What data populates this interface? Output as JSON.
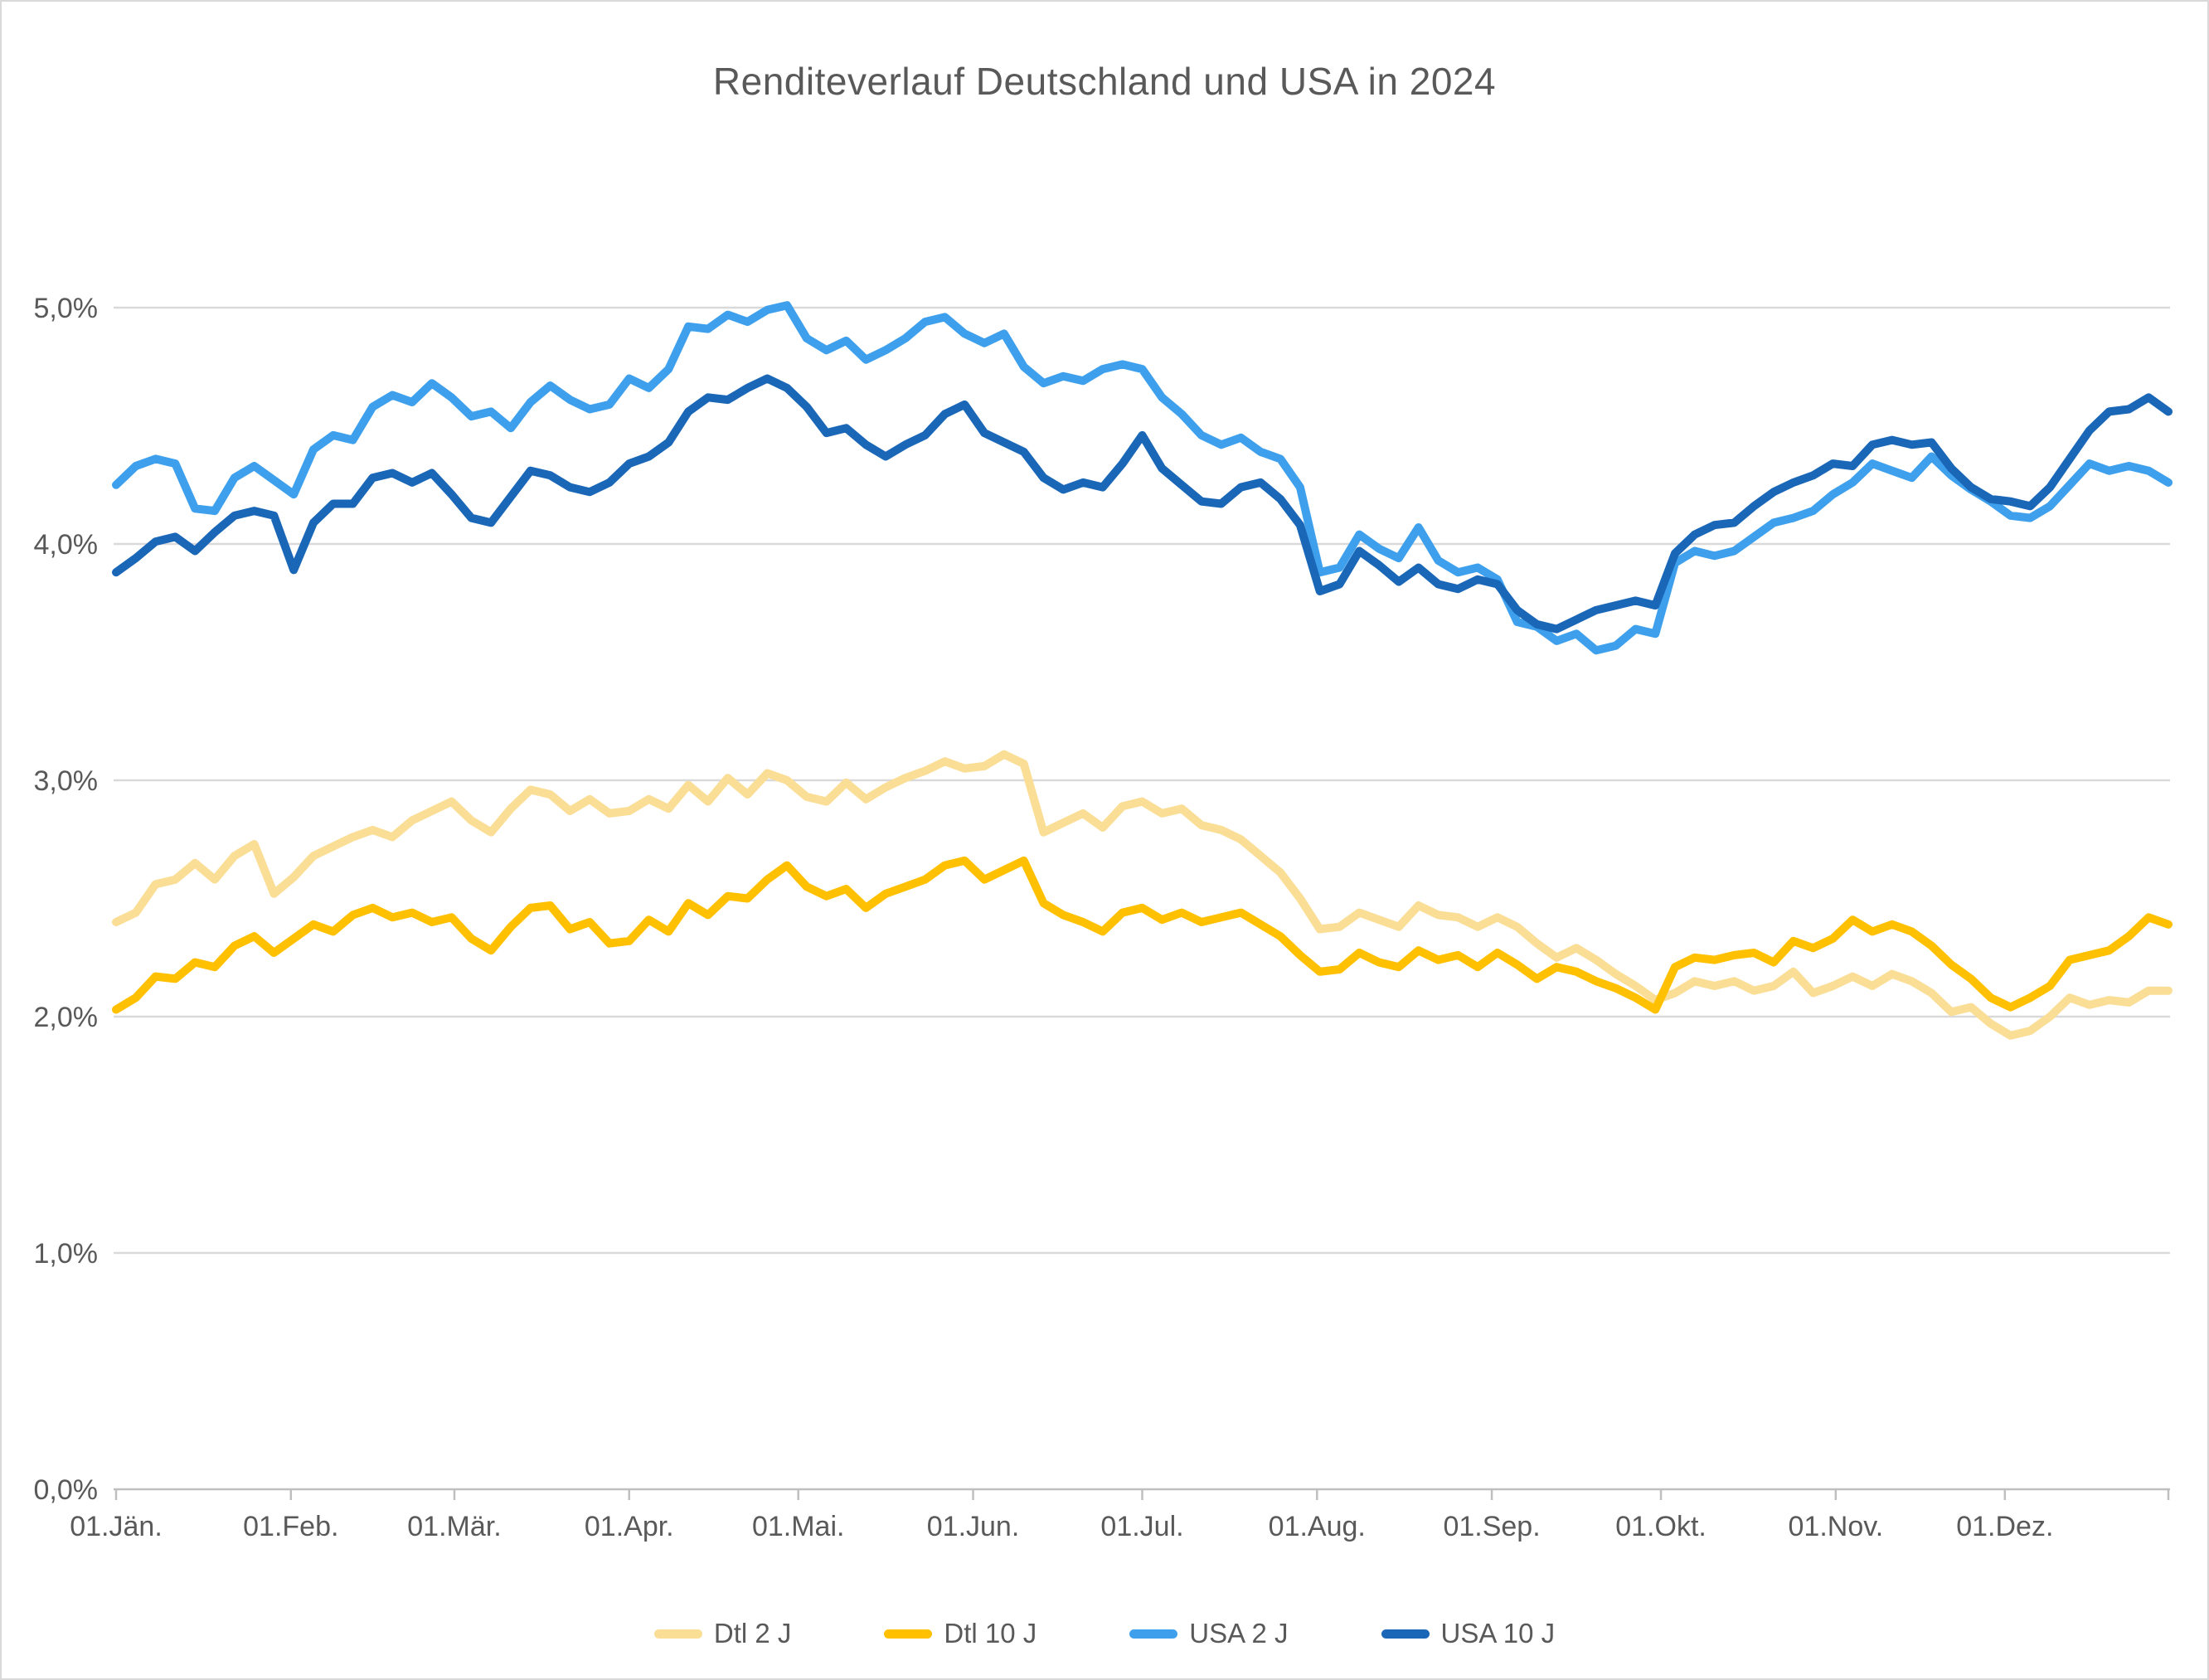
{
  "page": {
    "background": "#FFFFFF",
    "border_color": "#D9D9D9"
  },
  "chart_data": {
    "type": "line",
    "title": "Renditeverlauf Deutschland und USA in 2024",
    "title_color": "#595959",
    "label_color": "#595959",
    "gridline_color": "#D9D9D9",
    "axis_color": "#BFBFBF",
    "grid": true,
    "legend_position": "bottom",
    "ylim": [
      0,
      5.0
    ],
    "y_tick_labels": [
      "0,0%",
      "1,0%",
      "2,0%",
      "3,0%",
      "4,0%",
      "5,0%"
    ],
    "x_tick_labels": [
      "01.Jän.",
      "01.Feb.",
      "01.Mär.",
      "01.Apr.",
      "01.Mai.",
      "01.Jun.",
      "01.Jul.",
      "01.Aug.",
      "01.Sep.",
      "01.Okt.",
      "01.Nov.",
      "01.Dez."
    ],
    "x_unit": "Tage des Jahres 2024, 105 Stützpunkte von 01.Jän. bis 31.Dez.",
    "series": [
      {
        "name": "Dtl 2 J",
        "color": "#FADE96",
        "values": [
          2.4,
          2.44,
          2.56,
          2.58,
          2.65,
          2.58,
          2.68,
          2.73,
          2.52,
          2.59,
          2.68,
          2.72,
          2.76,
          2.79,
          2.76,
          2.83,
          2.87,
          2.91,
          2.83,
          2.78,
          2.88,
          2.96,
          2.94,
          2.87,
          2.92,
          2.86,
          2.87,
          2.92,
          2.88,
          2.98,
          2.91,
          3.01,
          2.94,
          3.03,
          3.0,
          2.93,
          2.91,
          2.99,
          2.92,
          2.97,
          3.01,
          3.04,
          3.08,
          3.05,
          3.06,
          3.11,
          3.07,
          2.78,
          2.82,
          2.86,
          2.8,
          2.89,
          2.91,
          2.86,
          2.88,
          2.81,
          2.79,
          2.75,
          2.68,
          2.61,
          2.5,
          2.37,
          2.38,
          2.44,
          2.41,
          2.38,
          2.47,
          2.43,
          2.42,
          2.38,
          2.42,
          2.38,
          2.31,
          2.25,
          2.29,
          2.24,
          2.18,
          2.13,
          2.07,
          2.1,
          2.15,
          2.13,
          2.15,
          2.11,
          2.13,
          2.19,
          2.1,
          2.13,
          2.17,
          2.13,
          2.18,
          2.15,
          2.1,
          2.02,
          2.04,
          1.97,
          1.92,
          1.94,
          2.0,
          2.08,
          2.05,
          2.07,
          2.06,
          2.11,
          2.11
        ]
      },
      {
        "name": "Dtl 10 J",
        "color": "#FFC000",
        "values": [
          2.03,
          2.08,
          2.17,
          2.16,
          2.23,
          2.21,
          2.3,
          2.34,
          2.27,
          2.33,
          2.39,
          2.36,
          2.43,
          2.46,
          2.42,
          2.44,
          2.4,
          2.42,
          2.33,
          2.28,
          2.38,
          2.46,
          2.47,
          2.37,
          2.4,
          2.31,
          2.32,
          2.41,
          2.36,
          2.48,
          2.43,
          2.51,
          2.5,
          2.58,
          2.64,
          2.55,
          2.51,
          2.54,
          2.46,
          2.52,
          2.55,
          2.58,
          2.64,
          2.66,
          2.58,
          2.62,
          2.66,
          2.48,
          2.43,
          2.4,
          2.36,
          2.44,
          2.46,
          2.41,
          2.44,
          2.4,
          2.42,
          2.44,
          2.39,
          2.34,
          2.26,
          2.19,
          2.2,
          2.27,
          2.23,
          2.21,
          2.28,
          2.24,
          2.26,
          2.21,
          2.27,
          2.22,
          2.16,
          2.21,
          2.19,
          2.15,
          2.12,
          2.08,
          2.03,
          2.21,
          2.25,
          2.24,
          2.26,
          2.27,
          2.23,
          2.32,
          2.29,
          2.33,
          2.41,
          2.36,
          2.39,
          2.36,
          2.3,
          2.22,
          2.16,
          2.08,
          2.04,
          2.08,
          2.13,
          2.24,
          2.26,
          2.28,
          2.34,
          2.42,
          2.39
        ]
      },
      {
        "name": "USA 2 J",
        "color": "#3EA0ED",
        "values": [
          4.25,
          4.33,
          4.36,
          4.34,
          4.15,
          4.14,
          4.28,
          4.33,
          4.27,
          4.21,
          4.4,
          4.46,
          4.44,
          4.58,
          4.63,
          4.6,
          4.68,
          4.62,
          4.54,
          4.56,
          4.49,
          4.6,
          4.67,
          4.61,
          4.57,
          4.59,
          4.7,
          4.66,
          4.74,
          4.92,
          4.91,
          4.97,
          4.94,
          4.99,
          5.01,
          4.87,
          4.82,
          4.86,
          4.78,
          4.82,
          4.87,
          4.94,
          4.96,
          4.89,
          4.85,
          4.89,
          4.75,
          4.68,
          4.71,
          4.69,
          4.74,
          4.76,
          4.74,
          4.62,
          4.55,
          4.46,
          4.42,
          4.45,
          4.39,
          4.36,
          4.24,
          3.88,
          3.9,
          4.04,
          3.98,
          3.94,
          4.07,
          3.93,
          3.88,
          3.9,
          3.85,
          3.67,
          3.65,
          3.59,
          3.62,
          3.55,
          3.57,
          3.64,
          3.62,
          3.92,
          3.97,
          3.95,
          3.97,
          4.03,
          4.09,
          4.11,
          4.14,
          4.21,
          4.26,
          4.34,
          4.31,
          4.28,
          4.37,
          4.29,
          4.23,
          4.18,
          4.12,
          4.11,
          4.16,
          4.25,
          4.34,
          4.31,
          4.33,
          4.31,
          4.26
        ]
      },
      {
        "name": "USA 10 J",
        "color": "#1A67B8",
        "values": [
          3.88,
          3.94,
          4.01,
          4.03,
          3.97,
          4.05,
          4.12,
          4.14,
          4.12,
          3.89,
          4.09,
          4.17,
          4.17,
          4.28,
          4.3,
          4.26,
          4.3,
          4.21,
          4.11,
          4.09,
          4.2,
          4.31,
          4.29,
          4.24,
          4.22,
          4.26,
          4.34,
          4.37,
          4.43,
          4.56,
          4.62,
          4.61,
          4.66,
          4.7,
          4.66,
          4.58,
          4.47,
          4.49,
          4.42,
          4.37,
          4.42,
          4.46,
          4.55,
          4.59,
          4.47,
          4.43,
          4.39,
          4.28,
          4.23,
          4.26,
          4.24,
          4.34,
          4.46,
          4.32,
          4.25,
          4.18,
          4.17,
          4.24,
          4.26,
          4.19,
          4.08,
          3.8,
          3.83,
          3.97,
          3.91,
          3.84,
          3.9,
          3.83,
          3.81,
          3.85,
          3.83,
          3.72,
          3.66,
          3.64,
          3.68,
          3.72,
          3.74,
          3.76,
          3.74,
          3.96,
          4.04,
          4.08,
          4.09,
          4.16,
          4.22,
          4.26,
          4.29,
          4.34,
          4.33,
          4.42,
          4.44,
          4.42,
          4.43,
          4.32,
          4.24,
          4.19,
          4.18,
          4.16,
          4.24,
          4.36,
          4.48,
          4.56,
          4.57,
          4.62,
          4.56
        ]
      }
    ]
  }
}
